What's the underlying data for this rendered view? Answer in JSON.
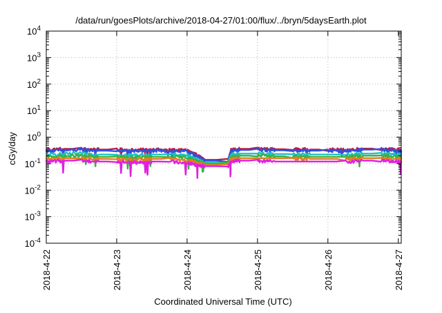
{
  "chart_data": {
    "type": "line",
    "title": "/data/run/goesPlots/archive/2018-04-27/01:00/flux/../bryn/5daysEarth.plot",
    "xlabel": "Coordinated Universal Time (UTC)",
    "ylabel": "cGy/day",
    "yscale": "log",
    "ylim": [
      0.0001,
      10000
    ],
    "xlim": [
      "2018-04-22",
      "2018-04-27 01:00"
    ],
    "grid": true,
    "x_ticks": [
      "2018-4-22",
      "2018-4-23",
      "2018-4-24",
      "2018-4-25",
      "2018-4-26",
      "2018-4-27"
    ],
    "y_ticks": [
      {
        "base": "10",
        "exp": "4"
      },
      {
        "base": "10",
        "exp": "3"
      },
      {
        "base": "10",
        "exp": "2"
      },
      {
        "base": "10",
        "exp": "1"
      },
      {
        "base": "10",
        "exp": "0"
      },
      {
        "base": "10",
        "exp": "-1"
      },
      {
        "base": "10",
        "exp": "-2"
      },
      {
        "base": "10",
        "exp": "-3"
      },
      {
        "base": "10",
        "exp": "-4"
      }
    ],
    "series": [
      {
        "color": "#c01a3a",
        "points": [
          [
            "2018-04-22 00:00",
            0.34
          ],
          [
            "2018-04-22 06:00",
            0.36
          ],
          [
            "2018-04-22 12:00",
            0.36
          ],
          [
            "2018-04-22 18:00",
            0.34
          ],
          [
            "2018-04-23 00:00",
            0.34
          ],
          [
            "2018-04-23 06:00",
            0.33
          ],
          [
            "2018-04-23 12:00",
            0.34
          ],
          [
            "2018-04-23 18:00",
            0.33
          ],
          [
            "2018-04-24 00:00",
            0.32
          ],
          [
            "2018-04-24 03:00",
            0.22
          ],
          [
            "2018-04-24 06:00",
            0.14
          ],
          [
            "2018-04-24 14:00",
            0.14
          ],
          [
            "2018-04-24 15:00",
            0.33
          ],
          [
            "2018-04-24 18:00",
            0.36
          ],
          [
            "2018-04-25 00:00",
            0.36
          ],
          [
            "2018-04-25 06:00",
            0.35
          ],
          [
            "2018-04-25 12:00",
            0.35
          ],
          [
            "2018-04-25 18:00",
            0.34
          ],
          [
            "2018-04-26 00:00",
            0.34
          ],
          [
            "2018-04-26 06:00",
            0.33
          ],
          [
            "2018-04-26 12:00",
            0.37
          ],
          [
            "2018-04-26 18:00",
            0.37
          ],
          [
            "2018-04-27 00:00",
            0.33
          ],
          [
            "2018-04-27 01:00",
            0.3
          ]
        ]
      },
      {
        "color": "#3050e0",
        "points": [
          [
            "2018-04-22 00:00",
            0.3
          ],
          [
            "2018-04-22 06:00",
            0.32
          ],
          [
            "2018-04-22 12:00",
            0.33
          ],
          [
            "2018-04-22 18:00",
            0.31
          ],
          [
            "2018-04-23 00:00",
            0.31
          ],
          [
            "2018-04-23 06:00",
            0.3
          ],
          [
            "2018-04-23 12:00",
            0.31
          ],
          [
            "2018-04-23 18:00",
            0.3
          ],
          [
            "2018-04-24 00:00",
            0.29
          ],
          [
            "2018-04-24 03:00",
            0.2
          ],
          [
            "2018-04-24 06:00",
            0.13
          ],
          [
            "2018-04-24 14:00",
            0.13
          ],
          [
            "2018-04-24 15:00",
            0.3
          ],
          [
            "2018-04-24 18:00",
            0.33
          ],
          [
            "2018-04-25 00:00",
            0.33
          ],
          [
            "2018-04-25 06:00",
            0.32
          ],
          [
            "2018-04-25 12:00",
            0.32
          ],
          [
            "2018-04-25 18:00",
            0.31
          ],
          [
            "2018-04-26 00:00",
            0.31
          ],
          [
            "2018-04-26 06:00",
            0.3
          ],
          [
            "2018-04-26 12:00",
            0.34
          ],
          [
            "2018-04-26 18:00",
            0.34
          ],
          [
            "2018-04-27 00:00",
            0.3
          ],
          [
            "2018-04-27 01:00",
            0.28
          ]
        ]
      },
      {
        "color": "#20c0c0",
        "points": [
          [
            "2018-04-22 00:00",
            0.22
          ],
          [
            "2018-04-22 06:00",
            0.23
          ],
          [
            "2018-04-22 12:00",
            0.24
          ],
          [
            "2018-04-22 18:00",
            0.22
          ],
          [
            "2018-04-23 00:00",
            0.22
          ],
          [
            "2018-04-23 06:00",
            0.21
          ],
          [
            "2018-04-23 12:00",
            0.22
          ],
          [
            "2018-04-23 18:00",
            0.22
          ],
          [
            "2018-04-24 00:00",
            0.21
          ],
          [
            "2018-04-24 03:00",
            0.15
          ],
          [
            "2018-04-24 06:00",
            0.11
          ],
          [
            "2018-04-24 14:00",
            0.11
          ],
          [
            "2018-04-24 15:00",
            0.22
          ],
          [
            "2018-04-24 18:00",
            0.24
          ],
          [
            "2018-04-25 00:00",
            0.24
          ],
          [
            "2018-04-25 06:00",
            0.23
          ],
          [
            "2018-04-25 12:00",
            0.23
          ],
          [
            "2018-04-25 18:00",
            0.22
          ],
          [
            "2018-04-26 00:00",
            0.22
          ],
          [
            "2018-04-26 06:00",
            0.22
          ],
          [
            "2018-04-26 12:00",
            0.24
          ],
          [
            "2018-04-26 18:00",
            0.24
          ],
          [
            "2018-04-27 00:00",
            0.22
          ],
          [
            "2018-04-27 01:00",
            0.2
          ]
        ]
      },
      {
        "color": "#3cb040",
        "points": [
          [
            "2018-04-22 00:00",
            0.18
          ],
          [
            "2018-04-22 06:00",
            0.19
          ],
          [
            "2018-04-22 12:00",
            0.2
          ],
          [
            "2018-04-22 18:00",
            0.18
          ],
          [
            "2018-04-23 00:00",
            0.18
          ],
          [
            "2018-04-23 06:00",
            0.17
          ],
          [
            "2018-04-23 12:00",
            0.18
          ],
          [
            "2018-04-23 18:00",
            0.18
          ],
          [
            "2018-04-24 00:00",
            0.17
          ],
          [
            "2018-04-24 03:00",
            0.13
          ],
          [
            "2018-04-24 06:00",
            0.1
          ],
          [
            "2018-04-24 14:00",
            0.1
          ],
          [
            "2018-04-24 15:00",
            0.18
          ],
          [
            "2018-04-24 18:00",
            0.2
          ],
          [
            "2018-04-25 00:00",
            0.2
          ],
          [
            "2018-04-25 06:00",
            0.19
          ],
          [
            "2018-04-25 12:00",
            0.19
          ],
          [
            "2018-04-25 18:00",
            0.18
          ],
          [
            "2018-04-26 00:00",
            0.18
          ],
          [
            "2018-04-26 06:00",
            0.18
          ],
          [
            "2018-04-26 12:00",
            0.2
          ],
          [
            "2018-04-26 18:00",
            0.2
          ],
          [
            "2018-04-27 00:00",
            0.18
          ],
          [
            "2018-04-27 01:00",
            0.17
          ]
        ]
      },
      {
        "color": "#e08020",
        "points": [
          [
            "2018-04-22 00:00",
            0.15
          ],
          [
            "2018-04-22 06:00",
            0.16
          ],
          [
            "2018-04-22 12:00",
            0.16
          ],
          [
            "2018-04-22 18:00",
            0.15
          ],
          [
            "2018-04-23 00:00",
            0.15
          ],
          [
            "2018-04-23 06:00",
            0.14
          ],
          [
            "2018-04-23 12:00",
            0.15
          ],
          [
            "2018-04-23 18:00",
            0.15
          ],
          [
            "2018-04-24 00:00",
            0.14
          ],
          [
            "2018-04-24 03:00",
            0.11
          ],
          [
            "2018-04-24 06:00",
            0.09
          ],
          [
            "2018-04-24 14:00",
            0.09
          ],
          [
            "2018-04-24 15:00",
            0.15
          ],
          [
            "2018-04-24 18:00",
            0.16
          ],
          [
            "2018-04-25 00:00",
            0.16
          ],
          [
            "2018-04-25 06:00",
            0.16
          ],
          [
            "2018-04-25 12:00",
            0.16
          ],
          [
            "2018-04-25 18:00",
            0.15
          ],
          [
            "2018-04-26 00:00",
            0.15
          ],
          [
            "2018-04-26 06:00",
            0.15
          ],
          [
            "2018-04-26 12:00",
            0.16
          ],
          [
            "2018-04-26 18:00",
            0.16
          ],
          [
            "2018-04-27 00:00",
            0.15
          ],
          [
            "2018-04-27 01:00",
            0.14
          ]
        ]
      },
      {
        "color": "#e020e0",
        "points": [
          [
            "2018-04-22 00:00",
            0.12
          ],
          [
            "2018-04-22 06:00",
            0.13
          ],
          [
            "2018-04-22 12:00",
            0.13
          ],
          [
            "2018-04-22 18:00",
            0.12
          ],
          [
            "2018-04-23 00:00",
            0.12
          ],
          [
            "2018-04-23 06:00",
            0.11
          ],
          [
            "2018-04-23 12:00",
            0.12
          ],
          [
            "2018-04-23 18:00",
            0.12
          ],
          [
            "2018-04-24 00:00",
            0.11
          ],
          [
            "2018-04-24 03:00",
            0.09
          ],
          [
            "2018-04-24 06:00",
            0.08
          ],
          [
            "2018-04-24 14:00",
            0.08
          ],
          [
            "2018-04-24 15:00",
            0.12
          ],
          [
            "2018-04-24 18:00",
            0.13
          ],
          [
            "2018-04-25 00:00",
            0.13
          ],
          [
            "2018-04-25 06:00",
            0.12
          ],
          [
            "2018-04-25 12:00",
            0.12
          ],
          [
            "2018-04-25 18:00",
            0.12
          ],
          [
            "2018-04-26 00:00",
            0.12
          ],
          [
            "2018-04-26 06:00",
            0.12
          ],
          [
            "2018-04-26 12:00",
            0.13
          ],
          [
            "2018-04-26 18:00",
            0.13
          ],
          [
            "2018-04-27 00:00",
            0.12
          ],
          [
            "2018-04-27 01:00",
            0.11
          ]
        ]
      }
    ]
  }
}
